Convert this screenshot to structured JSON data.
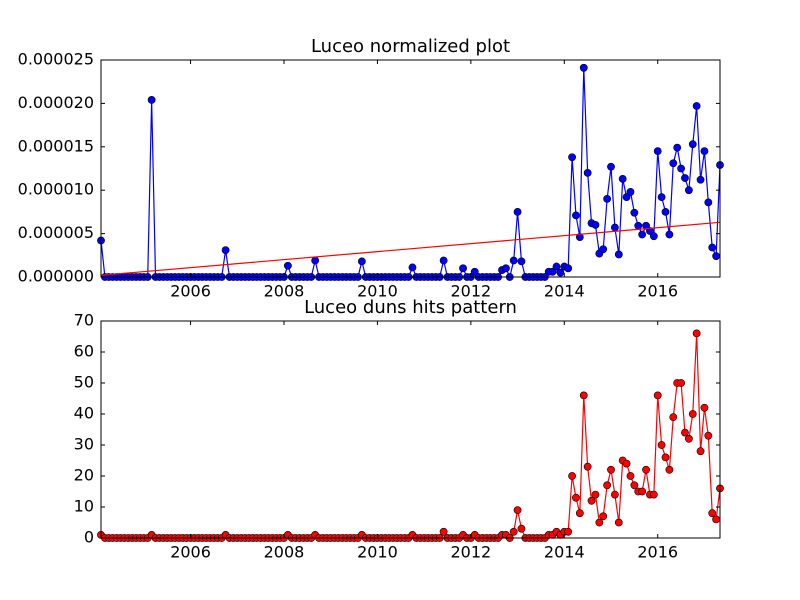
{
  "chart_data": [
    {
      "type": "line",
      "title": "Luceo normalized plot",
      "x": [
        2004.083,
        2004.167,
        2004.25,
        2004.333,
        2004.417,
        2004.5,
        2004.583,
        2004.667,
        2004.75,
        2004.833,
        2004.917,
        2005,
        2005.083,
        2005.167,
        2005.25,
        2005.333,
        2005.417,
        2005.5,
        2005.583,
        2005.667,
        2005.75,
        2005.833,
        2005.917,
        2006,
        2006.083,
        2006.167,
        2006.25,
        2006.333,
        2006.417,
        2006.5,
        2006.583,
        2006.667,
        2006.75,
        2006.833,
        2006.917,
        2007,
        2007.083,
        2007.167,
        2007.25,
        2007.333,
        2007.417,
        2007.5,
        2007.583,
        2007.667,
        2007.75,
        2007.833,
        2007.917,
        2008,
        2008.083,
        2008.167,
        2008.25,
        2008.333,
        2008.417,
        2008.5,
        2008.583,
        2008.667,
        2008.75,
        2008.833,
        2008.917,
        2009,
        2009.083,
        2009.167,
        2009.25,
        2009.333,
        2009.417,
        2009.5,
        2009.583,
        2009.667,
        2009.75,
        2009.833,
        2009.917,
        2010,
        2010.083,
        2010.167,
        2010.25,
        2010.333,
        2010.417,
        2010.5,
        2010.583,
        2010.667,
        2010.75,
        2010.833,
        2010.917,
        2011,
        2011.083,
        2011.167,
        2011.25,
        2011.333,
        2011.417,
        2011.5,
        2011.583,
        2011.667,
        2011.75,
        2011.833,
        2011.917,
        2012,
        2012.083,
        2012.167,
        2012.25,
        2012.333,
        2012.417,
        2012.5,
        2012.583,
        2012.667,
        2012.75,
        2012.833,
        2012.917,
        2013,
        2013.083,
        2013.167,
        2013.25,
        2013.333,
        2013.417,
        2013.5,
        2013.583,
        2013.667,
        2013.75,
        2013.833,
        2013.917,
        2014,
        2014.083,
        2014.167,
        2014.25,
        2014.333,
        2014.417,
        2014.5,
        2014.583,
        2014.667,
        2014.75,
        2014.833,
        2014.917,
        2015,
        2015.083,
        2015.167,
        2015.25,
        2015.333,
        2015.417,
        2015.5,
        2015.583,
        2015.667,
        2015.75,
        2015.833,
        2015.917,
        2016,
        2016.083,
        2016.167,
        2016.25,
        2016.333,
        2016.417,
        2016.5,
        2016.583,
        2016.667,
        2016.75,
        2016.833,
        2016.917,
        2017,
        2017.083,
        2017.167,
        2017.25,
        2017.333
      ],
      "series": [
        {
          "color": "#0000ff",
          "values": [
            4.2e-06,
            0,
            0,
            0,
            0,
            0,
            0,
            0,
            0,
            0,
            0,
            0,
            0,
            2.04e-05,
            0,
            0,
            0,
            0,
            0,
            0,
            0,
            0,
            0,
            0,
            0,
            0,
            0,
            0,
            0,
            0,
            0,
            0,
            3.1e-06,
            0,
            0,
            0,
            0,
            0,
            0,
            0,
            0,
            0,
            0,
            0,
            0,
            0,
            0,
            0,
            1.3e-06,
            0,
            0,
            0,
            0,
            0,
            0,
            1.9e-06,
            0,
            0,
            0,
            0,
            0,
            0,
            0,
            0,
            0,
            0,
            0,
            1.8e-06,
            0,
            0,
            0,
            0,
            0,
            0,
            0,
            0,
            0,
            0,
            0,
            0,
            1.1e-06,
            0,
            0,
            0,
            0,
            0,
            0,
            0,
            1.9e-06,
            0,
            0,
            0,
            0,
            1e-06,
            0,
            0,
            6e-07,
            0,
            0,
            0,
            0,
            0,
            0,
            8e-07,
            1e-06,
            0,
            1.9e-06,
            7.5e-06,
            1.8e-06,
            0,
            0,
            0,
            0,
            0,
            0,
            6e-07,
            6e-07,
            1.2e-06,
            5e-07,
            1.2e-06,
            1e-06,
            1.38e-05,
            7.1e-06,
            4.6e-06,
            2.41e-05,
            1.2e-05,
            6.2e-06,
            6e-06,
            2.7e-06,
            3.2e-06,
            9e-06,
            1.27e-05,
            5.7e-06,
            2.6e-06,
            1.13e-05,
            9.2e-06,
            9.8e-06,
            7.4e-06,
            5.9e-06,
            4.9e-06,
            5.9e-06,
            5.3e-06,
            4.7e-06,
            1.45e-05,
            9.2e-06,
            7.5e-06,
            4.9e-06,
            1.31e-05,
            1.49e-05,
            1.25e-05,
            1.14e-05,
            1e-05,
            1.53e-05,
            1.97e-05,
            1.12e-05,
            1.45e-05,
            8.6e-06,
            3.4e-06,
            2.4e-06,
            1.29e-05
          ]
        }
      ],
      "trend": {
        "color": "#ff0000",
        "x": [
          2004.083,
          2017.333
        ],
        "values": [
          2e-07,
          6.3e-06
        ]
      },
      "xlim": [
        2004.083,
        2017.333
      ],
      "xticks": [
        2006,
        2008,
        2010,
        2012,
        2014,
        2016
      ],
      "ylim": [
        0,
        2.5e-05
      ],
      "yticks": [
        {
          "value": 0,
          "label": "0.000000"
        },
        {
          "value": 5e-06,
          "label": "0.000005"
        },
        {
          "value": 1e-05,
          "label": "0.000010"
        },
        {
          "value": 1.5e-05,
          "label": "0.000015"
        },
        {
          "value": 2e-05,
          "label": "0.000020"
        },
        {
          "value": 2.5e-05,
          "label": "0.000025"
        }
      ]
    },
    {
      "type": "line",
      "title": "Luceo duns hits pattern",
      "x": [
        2004.083,
        2004.167,
        2004.25,
        2004.333,
        2004.417,
        2004.5,
        2004.583,
        2004.667,
        2004.75,
        2004.833,
        2004.917,
        2005,
        2005.083,
        2005.167,
        2005.25,
        2005.333,
        2005.417,
        2005.5,
        2005.583,
        2005.667,
        2005.75,
        2005.833,
        2005.917,
        2006,
        2006.083,
        2006.167,
        2006.25,
        2006.333,
        2006.417,
        2006.5,
        2006.583,
        2006.667,
        2006.75,
        2006.833,
        2006.917,
        2007,
        2007.083,
        2007.167,
        2007.25,
        2007.333,
        2007.417,
        2007.5,
        2007.583,
        2007.667,
        2007.75,
        2007.833,
        2007.917,
        2008,
        2008.083,
        2008.167,
        2008.25,
        2008.333,
        2008.417,
        2008.5,
        2008.583,
        2008.667,
        2008.75,
        2008.833,
        2008.917,
        2009,
        2009.083,
        2009.167,
        2009.25,
        2009.333,
        2009.417,
        2009.5,
        2009.583,
        2009.667,
        2009.75,
        2009.833,
        2009.917,
        2010,
        2010.083,
        2010.167,
        2010.25,
        2010.333,
        2010.417,
        2010.5,
        2010.583,
        2010.667,
        2010.75,
        2010.833,
        2010.917,
        2011,
        2011.083,
        2011.167,
        2011.25,
        2011.333,
        2011.417,
        2011.5,
        2011.583,
        2011.667,
        2011.75,
        2011.833,
        2011.917,
        2012,
        2012.083,
        2012.167,
        2012.25,
        2012.333,
        2012.417,
        2012.5,
        2012.583,
        2012.667,
        2012.75,
        2012.833,
        2012.917,
        2013,
        2013.083,
        2013.167,
        2013.25,
        2013.333,
        2013.417,
        2013.5,
        2013.583,
        2013.667,
        2013.75,
        2013.833,
        2013.917,
        2014,
        2014.083,
        2014.167,
        2014.25,
        2014.333,
        2014.417,
        2014.5,
        2014.583,
        2014.667,
        2014.75,
        2014.833,
        2014.917,
        2015,
        2015.083,
        2015.167,
        2015.25,
        2015.333,
        2015.417,
        2015.5,
        2015.583,
        2015.667,
        2015.75,
        2015.833,
        2015.917,
        2016,
        2016.083,
        2016.167,
        2016.25,
        2016.333,
        2016.417,
        2016.5,
        2016.583,
        2016.667,
        2016.75,
        2016.833,
        2016.917,
        2017,
        2017.083,
        2017.167,
        2017.25,
        2017.333
      ],
      "series": [
        {
          "color": "#ff0000",
          "values": [
            1,
            0,
            0,
            0,
            0,
            0,
            0,
            0,
            0,
            0,
            0,
            0,
            0,
            1,
            0,
            0,
            0,
            0,
            0,
            0,
            0,
            0,
            0,
            0,
            0,
            0,
            0,
            0,
            0,
            0,
            0,
            0,
            1,
            0,
            0,
            0,
            0,
            0,
            0,
            0,
            0,
            0,
            0,
            0,
            0,
            0,
            0,
            0,
            1,
            0,
            0,
            0,
            0,
            0,
            0,
            1,
            0,
            0,
            0,
            0,
            0,
            0,
            0,
            0,
            0,
            0,
            0,
            1,
            0,
            0,
            0,
            0,
            0,
            0,
            0,
            0,
            0,
            0,
            0,
            0,
            1,
            0,
            0,
            0,
            0,
            0,
            0,
            0,
            2,
            0,
            0,
            0,
            0,
            1,
            0,
            0,
            1,
            0,
            0,
            0,
            0,
            0,
            0,
            1,
            1,
            0,
            2,
            9,
            3,
            0,
            0,
            0,
            0,
            0,
            0,
            1,
            1,
            2,
            1,
            2,
            2,
            20,
            13,
            8,
            46,
            23,
            12,
            14,
            5,
            7,
            17,
            22,
            14,
            5,
            25,
            24,
            20,
            17,
            15,
            15,
            22,
            14,
            14,
            46,
            30,
            26,
            22,
            39,
            50,
            50,
            34,
            32,
            40,
            66,
            28,
            42,
            33,
            8,
            6,
            16
          ]
        }
      ],
      "xlim": [
        2004.083,
        2017.333
      ],
      "xticks": [
        2006,
        2008,
        2010,
        2012,
        2014,
        2016
      ],
      "ylim": [
        0,
        70
      ],
      "yticks": [
        0,
        10,
        20,
        30,
        40,
        50,
        60,
        70
      ]
    }
  ]
}
